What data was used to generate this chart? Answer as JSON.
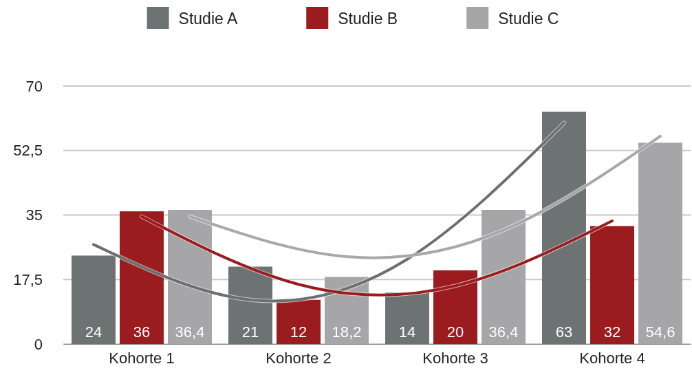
{
  "chart_data": {
    "type": "bar",
    "categories": [
      "Kohorte 1",
      "Kohorte 2",
      "Kohorte 3",
      "Kohorte 4"
    ],
    "series": [
      {
        "name": "Studie A",
        "color": "#6d7372",
        "values": [
          24,
          21,
          14,
          63
        ],
        "value_labels": [
          "24",
          "21",
          "14",
          "63"
        ]
      },
      {
        "name": "Studie B",
        "color": "#9a1c1f",
        "values": [
          36,
          12,
          20,
          32
        ],
        "value_labels": [
          "36",
          "12",
          "20",
          "32"
        ]
      },
      {
        "name": "Studie C",
        "color": "#a6a6a8",
        "values": [
          36.4,
          18.2,
          36.4,
          54.6
        ],
        "value_labels": [
          "36,4",
          "18,2",
          "36,4",
          "54,6"
        ]
      },
      {
        "type": "line",
        "color": "#6b706f",
        "values": [
          27,
          12,
          23,
          60
        ]
      },
      {
        "type": "line",
        "color": "#9b1b1e",
        "values": [
          34.6,
          16.2,
          15.8,
          33.4
        ]
      },
      {
        "type": "line",
        "color": "#a8a8a8",
        "values": [
          34.6,
          23.7,
          30.9,
          56.4
        ]
      }
    ],
    "ylim": [
      0,
      70
    ],
    "yticks": [
      0,
      {
        "value": 17.5,
        "label": "17,5"
      },
      35,
      {
        "value": 52.5,
        "label": "52,5"
      },
      70
    ],
    "grid": "y",
    "legend": "top"
  }
}
